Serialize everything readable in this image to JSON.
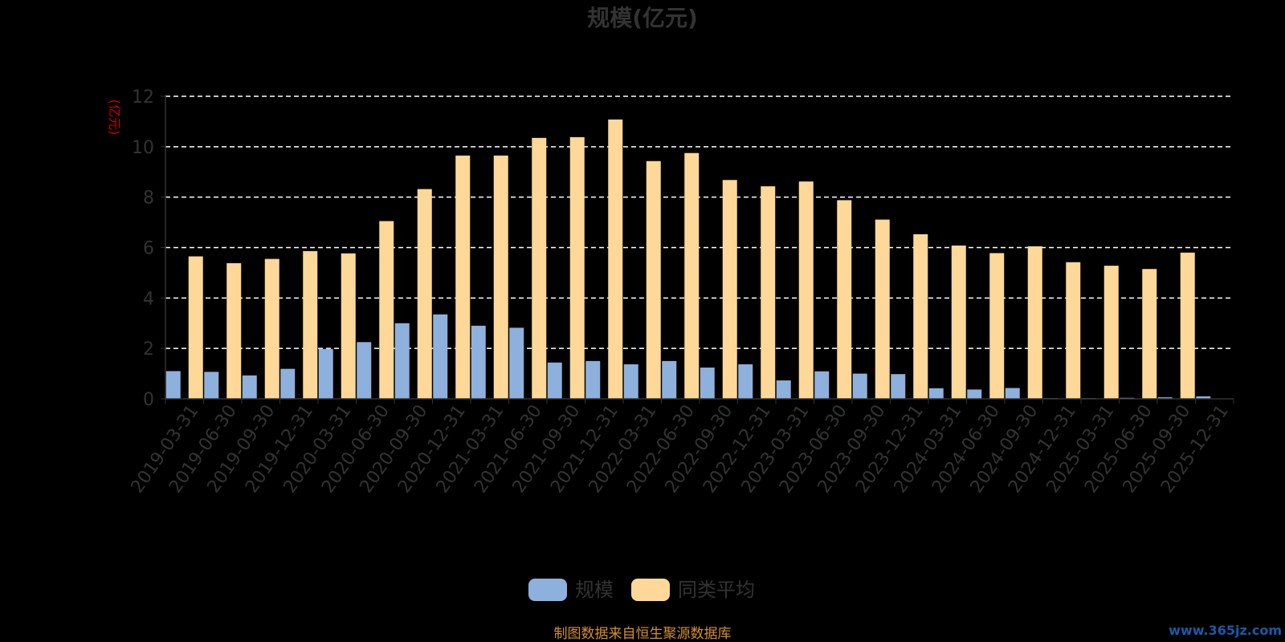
{
  "colors": {
    "background": "#000000",
    "series_scale": "#8eb0dc",
    "series_avg": "#fdd898",
    "axis_text": "#333333",
    "ylabel_color": "#cc0000",
    "grid": "#ffffff",
    "source_text": "#d4902a",
    "watermark_text": "#1a5aa8"
  },
  "source_note": "制图数据来自恒生聚源数据库",
  "watermark": "www.365jz.com",
  "chart_data": {
    "type": "bar",
    "title": "规模(亿元)",
    "ylabel": "(亿元)",
    "xlabel": "",
    "ylim": [
      0,
      12
    ],
    "yticks": [
      0,
      2,
      4,
      6,
      8,
      10,
      12
    ],
    "grid": true,
    "legend_position": "bottom",
    "categories": [
      "2019-03-31",
      "2019-06-30",
      "2019-09-30",
      "2019-12-31",
      "2020-03-31",
      "2020-06-30",
      "2020-09-30",
      "2020-12-31",
      "2021-03-31",
      "2021-06-30",
      "2021-09-30",
      "2021-12-31",
      "2022-03-31",
      "2022-06-30",
      "2022-09-30",
      "2022-12-31",
      "2023-03-31",
      "2023-06-30",
      "2023-09-30",
      "2023-12-31",
      "2024-03-31",
      "2024-06-30",
      "2024-09-30",
      "2024-12-31",
      "2025-03-31",
      "2025-06-30",
      "2025-09-30",
      "2025-12-31"
    ],
    "series": [
      {
        "name": "规模",
        "values": [
          1.1,
          1.07,
          0.93,
          1.19,
          1.98,
          2.25,
          3.0,
          3.35,
          2.9,
          2.82,
          1.44,
          1.5,
          1.37,
          1.5,
          1.24,
          1.37,
          0.73,
          1.09,
          1.0,
          0.98,
          0.42,
          0.37,
          0.43,
          0.02,
          0.01,
          0.04,
          0.06,
          0.1
        ]
      },
      {
        "name": "同类平均",
        "values": [
          5.65,
          5.38,
          5.55,
          5.86,
          5.77,
          7.05,
          8.32,
          9.65,
          9.65,
          10.35,
          10.38,
          11.08,
          9.43,
          9.75,
          8.68,
          8.43,
          8.62,
          7.88,
          7.11,
          6.53,
          6.08,
          5.78,
          6.05,
          5.42,
          5.28,
          5.15,
          5.8,
          null
        ]
      }
    ]
  }
}
